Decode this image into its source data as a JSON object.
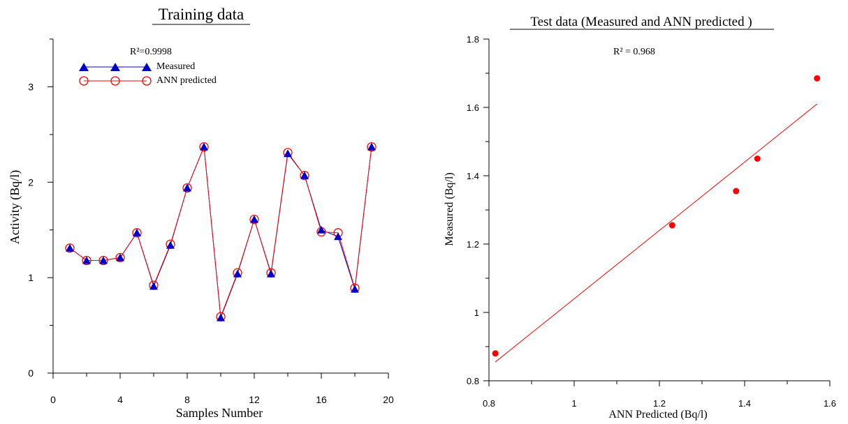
{
  "chart_data": [
    {
      "type": "line",
      "title": "Training data",
      "xlabel": "Samples Number",
      "ylabel": "Activity (Bq/l)",
      "xlim": [
        0,
        20
      ],
      "ylim": [
        0,
        3.5
      ],
      "xticks": [
        0,
        4,
        8,
        12,
        16,
        20
      ],
      "xtick_labels": [
        "0",
        "4",
        "8",
        "12",
        "16",
        "20"
      ],
      "yticks": [
        0,
        1,
        2,
        3
      ],
      "ytick_labels": [
        "0",
        "1",
        "2",
        "3"
      ],
      "annotation": "R²=0.9998",
      "legend_position": "top-left",
      "grid": false,
      "x": [
        1,
        2,
        3,
        4,
        5,
        6,
        7,
        8,
        9,
        10,
        11,
        12,
        13,
        14,
        15,
        16,
        17,
        18,
        19
      ],
      "series": [
        {
          "name": "Measured",
          "marker": "triangle",
          "color": "#0000cc",
          "values": [
            1.31,
            1.18,
            1.18,
            1.21,
            1.47,
            0.91,
            1.34,
            1.94,
            2.37,
            0.58,
            1.04,
            1.61,
            1.04,
            2.3,
            2.07,
            1.5,
            1.43,
            0.88,
            2.37
          ]
        },
        {
          "name": "ANN predicted",
          "marker": "circle",
          "color": "#ff0000",
          "values": [
            1.31,
            1.18,
            1.18,
            1.21,
            1.47,
            0.92,
            1.35,
            1.94,
            2.37,
            0.59,
            1.05,
            1.61,
            1.05,
            2.31,
            2.07,
            1.48,
            1.47,
            0.89,
            2.37
          ]
        }
      ]
    },
    {
      "type": "scatter",
      "title": "Test data (Measured and ANN predicted )",
      "xlabel": "ANN Predicted (Bq/l)",
      "ylabel": "Measured (Bq/l)",
      "xlim": [
        0.8,
        1.6
      ],
      "ylim": [
        0.8,
        1.8
      ],
      "xticks": [
        0.8,
        1.0,
        1.2,
        1.4,
        1.6
      ],
      "xtick_labels": [
        "0.8",
        "1",
        "1.2",
        "1.4",
        "1.6"
      ],
      "yticks": [
        0.8,
        1.0,
        1.2,
        1.4,
        1.6,
        1.8
      ],
      "ytick_labels": [
        "0.8",
        "1",
        "1.2",
        "1.4",
        "1.6",
        "1.8"
      ],
      "annotation": "R² = 0.968",
      "grid": false,
      "points": [
        {
          "x": 0.815,
          "y": 0.88
        },
        {
          "x": 1.23,
          "y": 1.255
        },
        {
          "x": 1.38,
          "y": 1.355
        },
        {
          "x": 1.43,
          "y": 1.45
        },
        {
          "x": 1.57,
          "y": 1.685
        }
      ],
      "fit_line": {
        "x": [
          0.815,
          1.57
        ],
        "y": [
          0.855,
          1.61
        ]
      },
      "point_color": "#ff0000",
      "line_color": "#ff0000"
    }
  ]
}
